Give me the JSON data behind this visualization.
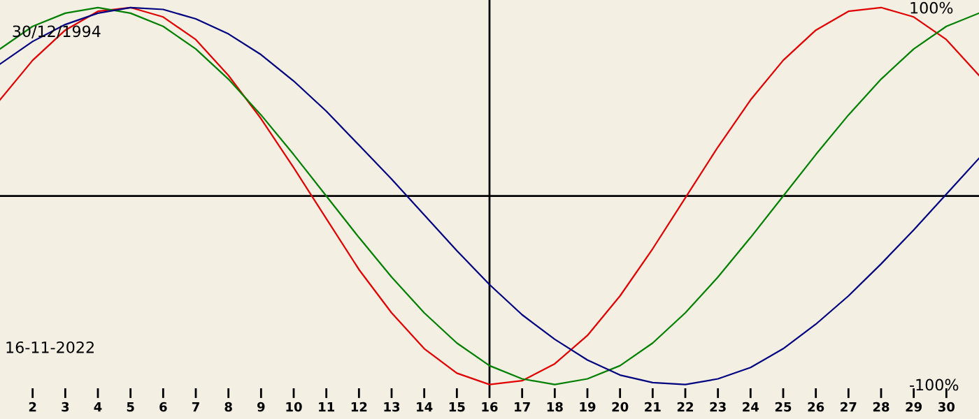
{
  "chart_data": {
    "type": "line",
    "x": [
      1,
      2,
      3,
      4,
      5,
      6,
      7,
      8,
      9,
      10,
      11,
      12,
      13,
      14,
      15,
      16,
      17,
      18,
      19,
      20,
      21,
      22,
      23,
      24,
      25,
      26,
      27,
      28,
      29,
      30,
      31
    ],
    "series": [
      {
        "color": "#e00000",
        "values": [
          51,
          72,
          88,
          98,
          100,
          95,
          83,
          64,
          41,
          15,
          -12,
          -39,
          -62,
          -81,
          -94,
          -100,
          -98,
          -89,
          -74,
          -53,
          -28,
          -1,
          26,
          51,
          72,
          88,
          98,
          100,
          95,
          83,
          64
        ]
      },
      {
        "color": "#008000",
        "values": [
          78,
          90,
          97,
          100,
          97,
          90,
          78,
          62,
          43,
          22,
          0,
          -22,
          -43,
          -62,
          -78,
          -90,
          -97,
          -100,
          -97,
          -90,
          -78,
          -62,
          -43,
          -22,
          0,
          22,
          43,
          62,
          78,
          90,
          97
        ]
      },
      {
        "color": "#000080",
        "values": [
          70,
          82,
          91,
          97,
          100,
          99,
          94,
          86,
          75,
          61,
          45,
          27,
          9,
          -10,
          -29,
          -47,
          -63,
          -76,
          -87,
          -95,
          -99,
          -100,
          -97,
          -91,
          -81,
          -68,
          -53,
          -36,
          -18,
          1,
          20
        ]
      }
    ],
    "xlim": [
      1,
      31
    ],
    "xticks": [
      2,
      3,
      4,
      5,
      6,
      7,
      8,
      9,
      10,
      11,
      12,
      13,
      14,
      15,
      16,
      17,
      18,
      19,
      20,
      21,
      22,
      23,
      24,
      25,
      26,
      27,
      28,
      29,
      30
    ],
    "ylim": [
      -102,
      104
    ],
    "yticks": [
      {
        "value": 100,
        "label": "100%"
      },
      {
        "value": -100,
        "label": "-100%"
      }
    ],
    "ref_lines": [
      {
        "axis": "x",
        "value": 16,
        "color": "#000000"
      },
      {
        "axis": "y",
        "value": 0,
        "color": "#000000"
      }
    ],
    "annotations": [
      "30/12/1994",
      "16-11-2022"
    ],
    "grid": false,
    "marker": "none",
    "line_style": "solid"
  }
}
